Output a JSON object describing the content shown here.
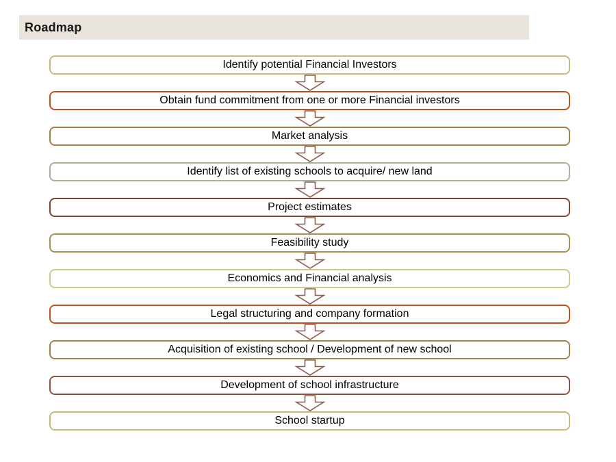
{
  "header": {
    "title": "Roadmap",
    "background": "#eae5dc"
  },
  "flow": {
    "box_fill": "#ffffff",
    "text_color": "#000000",
    "arrow_fill": "#ffffff",
    "arrow_outline": "#8e5c48",
    "steps": [
      {
        "label": "Identify potential Financial Investors",
        "border": "#c3ba7c"
      },
      {
        "label": "Obtain fund commitment from one or more Financial investors",
        "border": "#c0501e"
      },
      {
        "label": "Market analysis",
        "border": "#a27f48"
      },
      {
        "label": "Identify list of existing schools to acquire/ new land",
        "border": "#a9b299"
      },
      {
        "label": "Project estimates",
        "border": "#7c452c"
      },
      {
        "label": "Feasibility study",
        "border": "#a69256"
      },
      {
        "label": "Economics and Financial analysis",
        "border": "#cfc98e"
      },
      {
        "label": "Legal structuring and company formation",
        "border": "#c2511f"
      },
      {
        "label": "Acquisition of existing school / Development of new school",
        "border": "#a0804a"
      },
      {
        "label": "Development of school infrastructure",
        "border": "#8a5440"
      },
      {
        "label": "School startup",
        "border": "#c3ba7c"
      }
    ]
  }
}
